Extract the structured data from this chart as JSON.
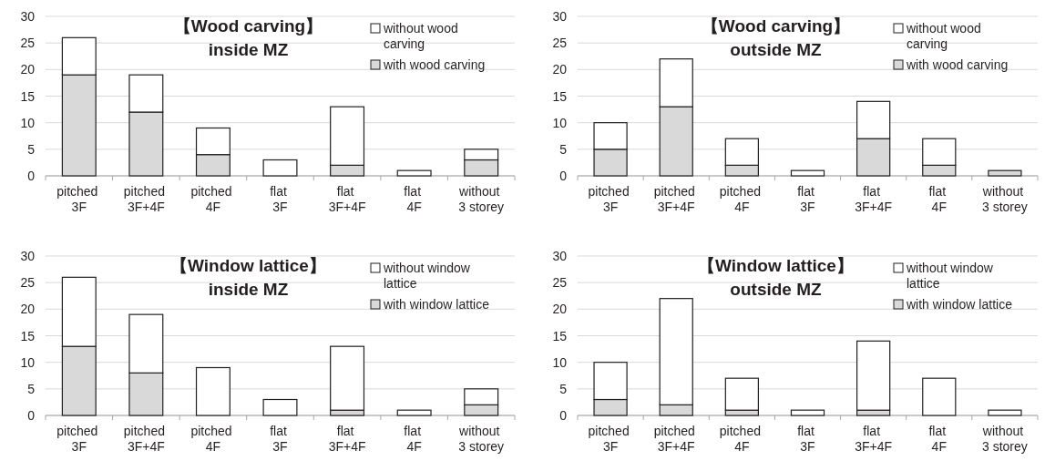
{
  "chart_data": [
    {
      "type": "bar",
      "title": "【Wood carving】",
      "subtitle": "inside MZ",
      "categories": [
        "pitched 3F",
        "pitched 3F+4F",
        "pitched 4F",
        "flat 3F",
        "flat 3F+4F",
        "flat 4F",
        "without 3 storey"
      ],
      "stacked": true,
      "ylim": [
        0,
        30
      ],
      "yticks": [
        0,
        5,
        10,
        15,
        20,
        25,
        30
      ],
      "grid": "y",
      "legend": "top right",
      "series": [
        {
          "name": "with wood carving",
          "color": "#d9d9d9",
          "values": [
            19,
            12,
            4,
            0,
            2,
            0,
            3
          ]
        },
        {
          "name": "without wood carving",
          "color": "#ffffff",
          "values": [
            7,
            7,
            5,
            3,
            11,
            1,
            2
          ]
        }
      ]
    },
    {
      "type": "bar",
      "title": "【Wood carving】",
      "subtitle": "outside MZ",
      "categories": [
        "pitched 3F",
        "pitched 3F+4F",
        "pitched 4F",
        "flat 3F",
        "flat 3F+4F",
        "flat 4F",
        "without 3 storey"
      ],
      "stacked": true,
      "ylim": [
        0,
        30
      ],
      "yticks": [
        0,
        5,
        10,
        15,
        20,
        25,
        30
      ],
      "grid": "y",
      "legend": "top right",
      "series": [
        {
          "name": "with wood carving",
          "color": "#d9d9d9",
          "values": [
            5,
            13,
            2,
            0,
            7,
            2,
            1
          ]
        },
        {
          "name": "without wood carving",
          "color": "#ffffff",
          "values": [
            5,
            9,
            5,
            1,
            7,
            5,
            0
          ]
        }
      ]
    },
    {
      "type": "bar",
      "title": "【Window lattice】",
      "subtitle": "inside MZ",
      "categories": [
        "pitched 3F",
        "pitched 3F+4F",
        "pitched 4F",
        "flat 3F",
        "flat 3F+4F",
        "flat 4F",
        "without 3 storey"
      ],
      "stacked": true,
      "ylim": [
        0,
        30
      ],
      "yticks": [
        0,
        5,
        10,
        15,
        20,
        25,
        30
      ],
      "grid": "y",
      "legend": "top right",
      "series": [
        {
          "name": "with window lattice",
          "color": "#d9d9d9",
          "values": [
            13,
            8,
            0,
            0,
            1,
            0,
            2
          ]
        },
        {
          "name": "without window lattice",
          "color": "#ffffff",
          "values": [
            13,
            11,
            9,
            3,
            12,
            1,
            3
          ]
        }
      ]
    },
    {
      "type": "bar",
      "title": "【Window lattice】",
      "subtitle": "outside MZ",
      "categories": [
        "pitched 3F",
        "pitched 3F+4F",
        "pitched 4F",
        "flat 3F",
        "flat 3F+4F",
        "flat 4F",
        "without 3 storey"
      ],
      "stacked": true,
      "ylim": [
        0,
        30
      ],
      "yticks": [
        0,
        5,
        10,
        15,
        20,
        25,
        30
      ],
      "grid": "y",
      "legend": "top right",
      "series": [
        {
          "name": "with window lattice",
          "color": "#d9d9d9",
          "values": [
            3,
            2,
            1,
            0,
            1,
            0,
            0
          ]
        },
        {
          "name": "without window lattice",
          "color": "#ffffff",
          "values": [
            7,
            20,
            6,
            1,
            13,
            7,
            1
          ]
        }
      ]
    }
  ]
}
